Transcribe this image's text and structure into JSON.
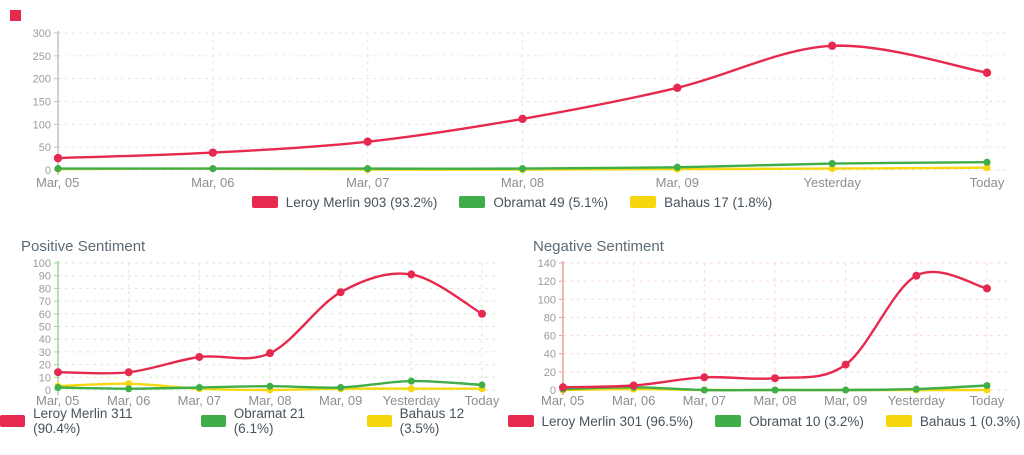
{
  "styles": {
    "accent_red": "#e6294e",
    "accent_green": "#3fae49",
    "accent_yellow": "#f6d70e",
    "tick_label_color": "#9b9b9b",
    "x_label_color": "#8d8d8d",
    "legend_text_color": "#47525c",
    "title_color": "#5c6a75"
  },
  "chart_data": [
    {
      "id": "mentions",
      "type": "line",
      "title": "",
      "categories": [
        "Mar, 05",
        "Mar, 06",
        "Mar, 07",
        "Mar, 08",
        "Mar, 09",
        "Yesterday",
        "Today"
      ],
      "series": [
        {
          "name": "Leroy Merlin",
          "color": "#e6294e",
          "values": [
            26,
            38,
            62,
            112,
            180,
            272,
            213
          ]
        },
        {
          "name": "Obramat",
          "color": "#3fae49",
          "values": [
            3,
            3,
            3,
            3,
            6,
            14,
            17
          ]
        },
        {
          "name": "Bahaus",
          "color": "#f6d70e",
          "values": [
            2,
            3,
            1,
            1,
            2,
            3,
            5
          ]
        }
      ],
      "ylim": [
        0,
        300
      ],
      "ytick_step": 50,
      "grid": "on",
      "grid_color": "#e6e6e6",
      "axis_color": "#c2c2c2",
      "legend_position": "bottom",
      "legend": [
        {
          "label": "Leroy Merlin 903 (93.2%)",
          "color": "#e6294e"
        },
        {
          "label": "Obramat 49 (5.1%)",
          "color": "#3fae49"
        },
        {
          "label": "Bahaus 17 (1.8%)",
          "color": "#f6d70e"
        }
      ]
    },
    {
      "id": "positive-sentiment",
      "type": "line",
      "title": "Positive Sentiment",
      "categories": [
        "Mar, 05",
        "Mar, 06",
        "Mar, 07",
        "Mar, 08",
        "Mar, 09",
        "Yesterday",
        "Today"
      ],
      "series": [
        {
          "name": "Leroy Merlin",
          "color": "#e6294e",
          "values": [
            14,
            14,
            26,
            29,
            77,
            91,
            60
          ]
        },
        {
          "name": "Obramat",
          "color": "#3fae49",
          "values": [
            2,
            1,
            2,
            3,
            2,
            7,
            4
          ]
        },
        {
          "name": "Bahaus",
          "color": "#f6d70e",
          "values": [
            3,
            5,
            1,
            0,
            1,
            1,
            1
          ]
        }
      ],
      "ylim": [
        0,
        100
      ],
      "ytick_step": 10,
      "grid": "on",
      "grid_color": "#d7ecd7",
      "axis_color": "#9ed29e",
      "legend_position": "bottom",
      "legend": [
        {
          "label": "Leroy Merlin 311 (90.4%)",
          "color": "#e6294e"
        },
        {
          "label": "Obramat 21 (6.1%)",
          "color": "#3fae49"
        },
        {
          "label": "Bahaus 12 (3.5%)",
          "color": "#f6d70e"
        }
      ]
    },
    {
      "id": "negative-sentiment",
      "type": "line",
      "title": "Negative Sentiment",
      "categories": [
        "Mar, 05",
        "Mar, 06",
        "Mar, 07",
        "Mar, 08",
        "Mar, 09",
        "Yesterday",
        "Today"
      ],
      "series": [
        {
          "name": "Leroy Merlin",
          "color": "#e6294e",
          "values": [
            3,
            5,
            14,
            13,
            28,
            126,
            112
          ]
        },
        {
          "name": "Obramat",
          "color": "#3fae49",
          "values": [
            1,
            3,
            0,
            0,
            0,
            1,
            5
          ]
        },
        {
          "name": "Bahaus",
          "color": "#f6d70e",
          "values": [
            0,
            1,
            0,
            0,
            0,
            0,
            0
          ]
        }
      ],
      "ylim": [
        0,
        140
      ],
      "ytick_step": 20,
      "grid": "on",
      "grid_color": "#f9d9d9",
      "axis_color": "#e7a2a2",
      "legend_position": "bottom",
      "legend": [
        {
          "label": "Leroy Merlin 301 (96.5%)",
          "color": "#e6294e"
        },
        {
          "label": "Obramat 10 (3.2%)",
          "color": "#3fae49"
        },
        {
          "label": "Bahaus 1 (0.3%)",
          "color": "#f6d70e"
        }
      ]
    }
  ]
}
